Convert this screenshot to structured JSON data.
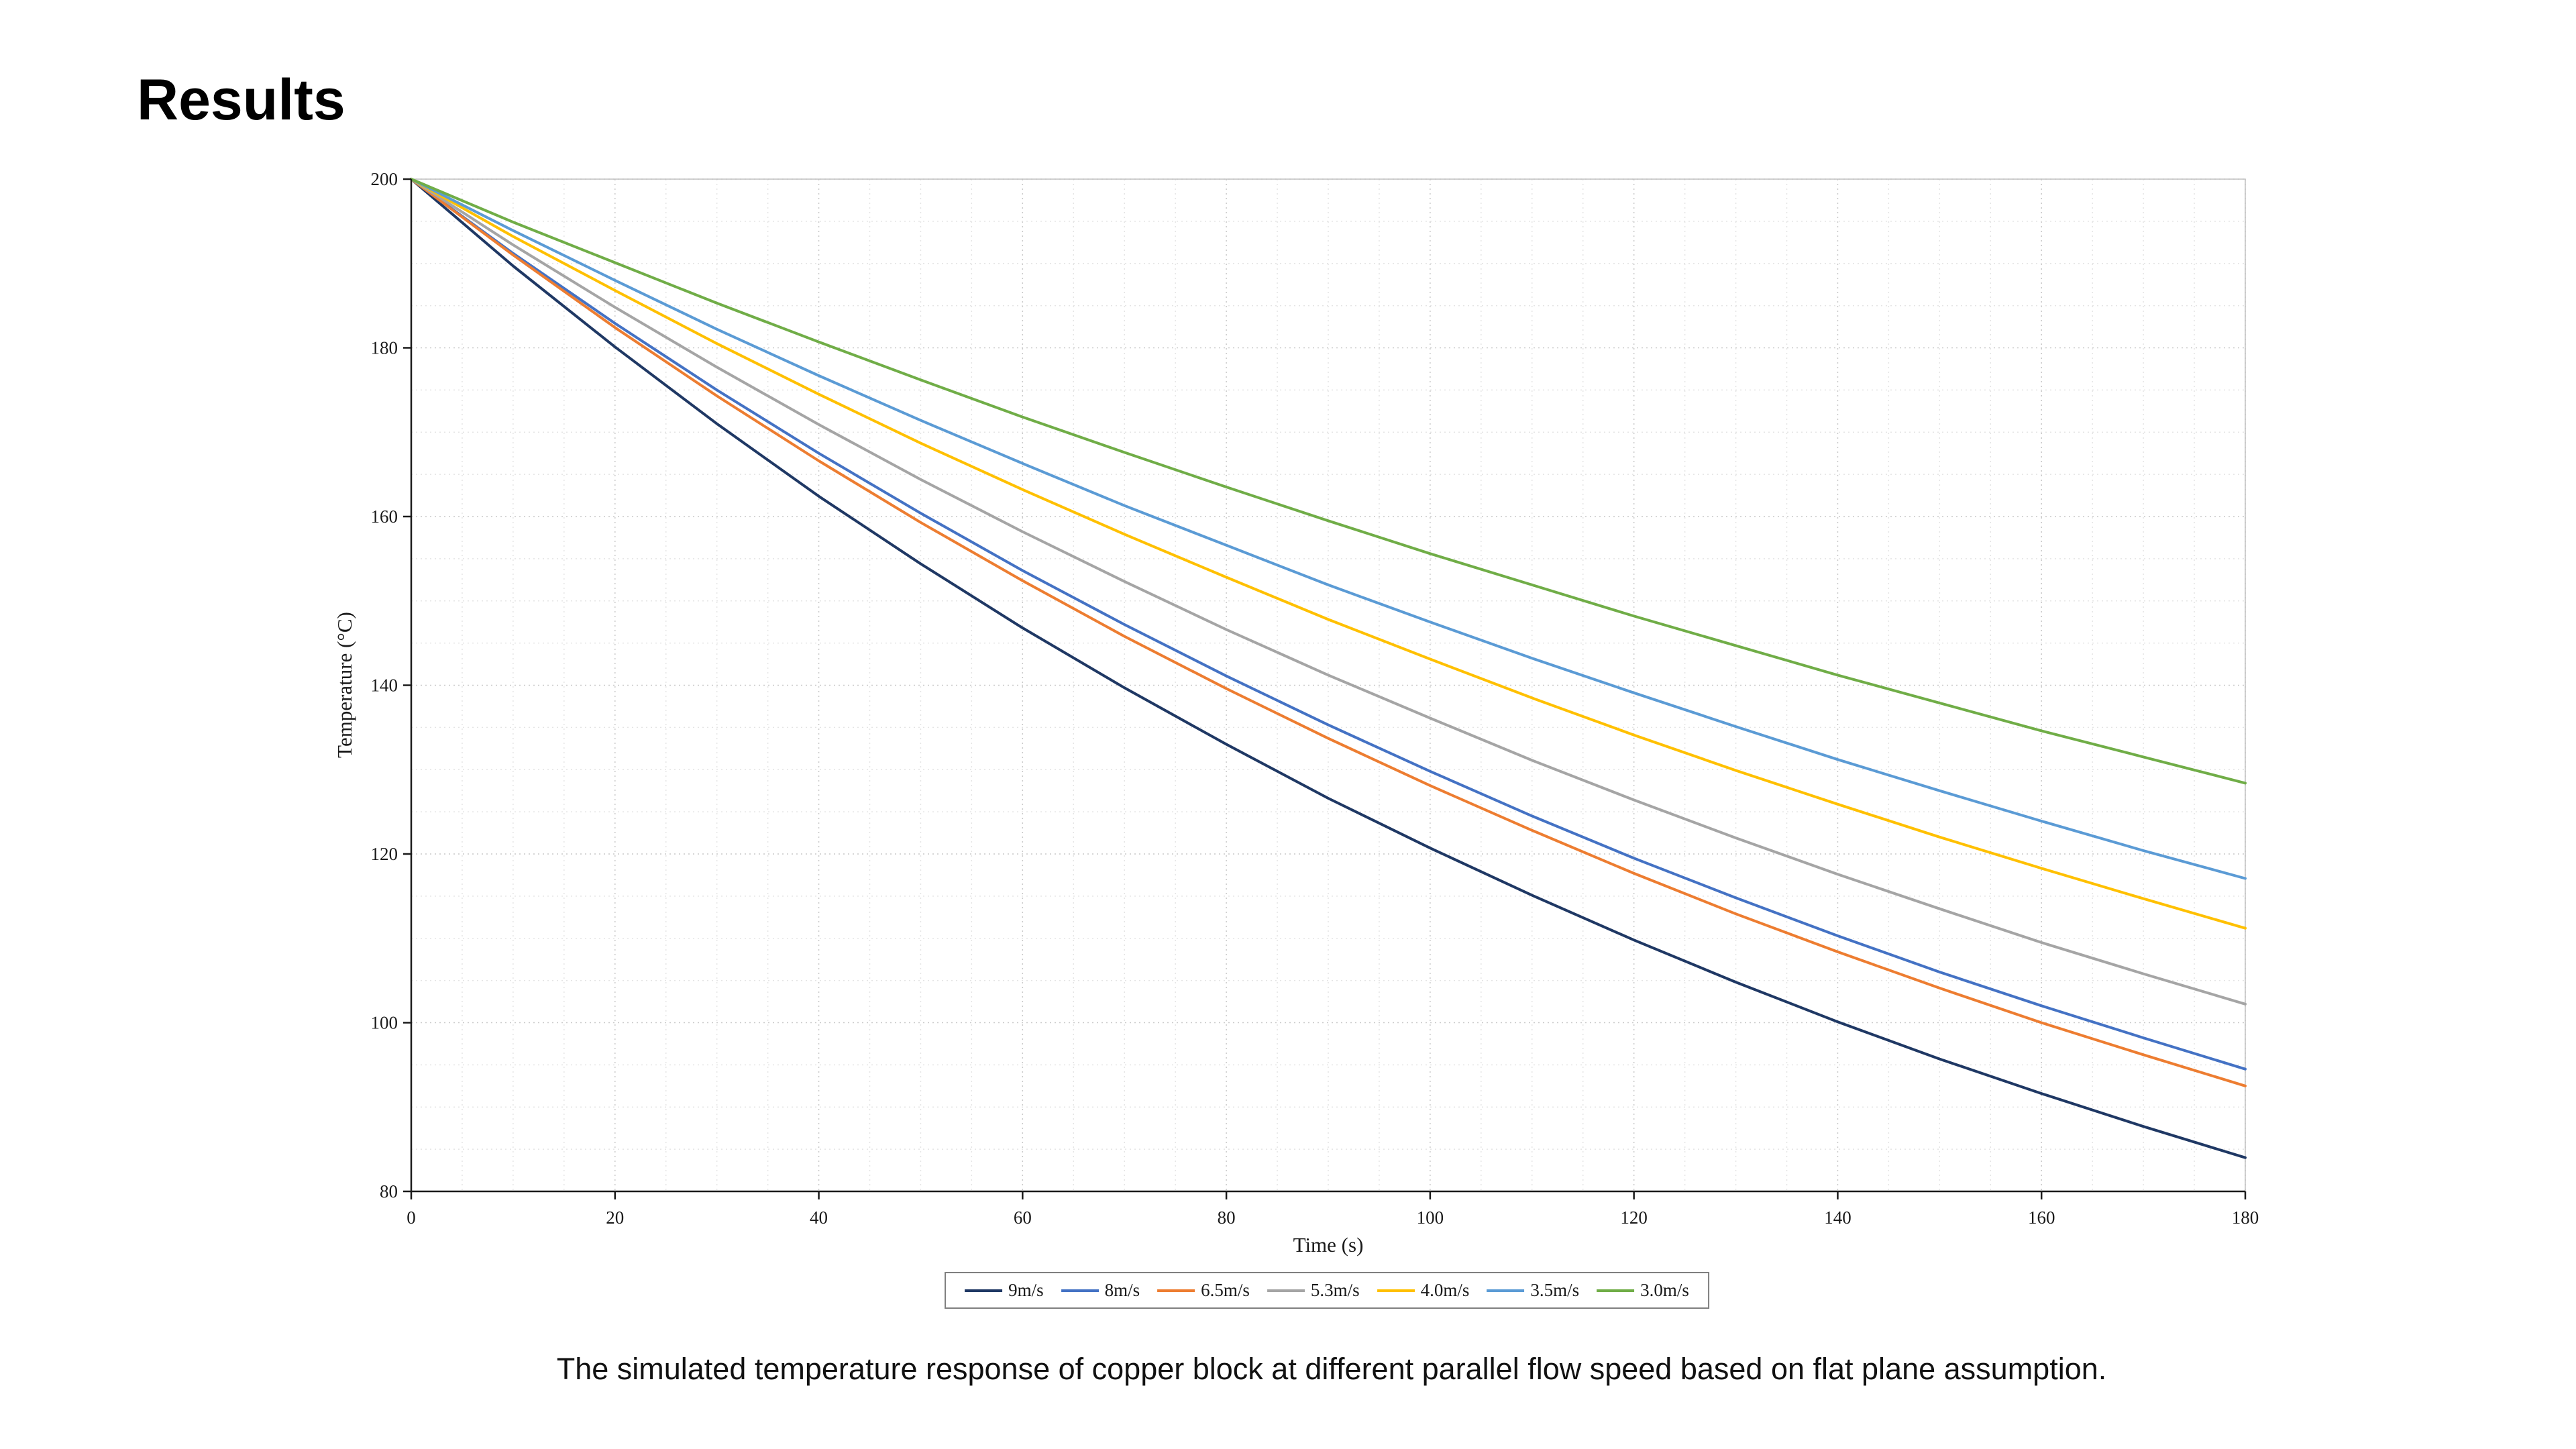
{
  "page": {
    "title": "Results",
    "caption": "The simulated temperature response of copper block at different parallel flow speed based on flat plane assumption."
  },
  "chart_data": {
    "type": "line",
    "title": "",
    "xlabel": "Time (s)",
    "ylabel": "Temperature (°C)",
    "xlim": [
      0,
      180
    ],
    "ylim": [
      80,
      200
    ],
    "x_ticks": [
      0,
      20,
      40,
      60,
      80,
      100,
      120,
      140,
      160,
      180
    ],
    "y_ticks": [
      80,
      100,
      120,
      140,
      160,
      180,
      200
    ],
    "x_minor_step": 5,
    "y_minor_step": 5,
    "grid": true,
    "legend_position": "bottom",
    "x": [
      0,
      10,
      20,
      30,
      40,
      50,
      60,
      70,
      80,
      90,
      100,
      110,
      120,
      130,
      140,
      150,
      160,
      170,
      180
    ],
    "series": [
      {
        "name": "9m/s",
        "color": "#1F3864",
        "values": [
          200,
          189.7,
          180.1,
          171.0,
          162.4,
          154.4,
          146.8,
          139.7,
          133.0,
          126.6,
          120.7,
          115.1,
          109.8,
          104.8,
          100.1,
          95.7,
          91.6,
          87.7,
          84.0
        ]
      },
      {
        "name": "8m/s",
        "color": "#4472C4",
        "values": [
          200,
          191.2,
          182.9,
          175.0,
          167.5,
          160.4,
          153.6,
          147.2,
          141.1,
          135.3,
          129.8,
          124.5,
          119.5,
          114.8,
          110.3,
          106.0,
          102.0,
          98.2,
          94.5
        ]
      },
      {
        "name": "6.5m/s",
        "color": "#ED7D31",
        "values": [
          200,
          191.0,
          182.4,
          174.3,
          166.6,
          159.3,
          152.4,
          145.8,
          139.6,
          133.7,
          128.1,
          122.8,
          117.7,
          112.9,
          108.4,
          104.1,
          100.0,
          96.2,
          92.5
        ]
      },
      {
        "name": "5.3m/s",
        "color": "#A5A5A5",
        "values": [
          200,
          192.2,
          184.8,
          177.7,
          170.9,
          164.4,
          158.2,
          152.3,
          146.6,
          141.2,
          136.1,
          131.1,
          126.4,
          121.9,
          117.6,
          113.5,
          109.5,
          105.8,
          102.2
        ]
      },
      {
        "name": "4.0m/s",
        "color": "#FFC000",
        "values": [
          200,
          193.2,
          186.8,
          180.5,
          174.5,
          168.7,
          163.2,
          157.9,
          152.8,
          147.8,
          143.1,
          138.5,
          134.1,
          129.9,
          125.9,
          122.0,
          118.3,
          114.7,
          111.2
        ]
      },
      {
        "name": "3.5m/s",
        "color": "#5B9BD5",
        "values": [
          200,
          193.9,
          188.0,
          182.2,
          176.7,
          171.4,
          166.3,
          161.3,
          156.6,
          151.9,
          147.5,
          143.2,
          139.1,
          135.1,
          131.2,
          127.5,
          123.9,
          120.4,
          117.1
        ]
      },
      {
        "name": "3.0m/s",
        "color": "#70AD47",
        "values": [
          200,
          194.9,
          190.1,
          185.3,
          180.7,
          176.2,
          171.8,
          167.6,
          163.5,
          159.5,
          155.6,
          151.9,
          148.2,
          144.7,
          141.2,
          137.9,
          134.6,
          131.5,
          128.4
        ]
      }
    ]
  }
}
